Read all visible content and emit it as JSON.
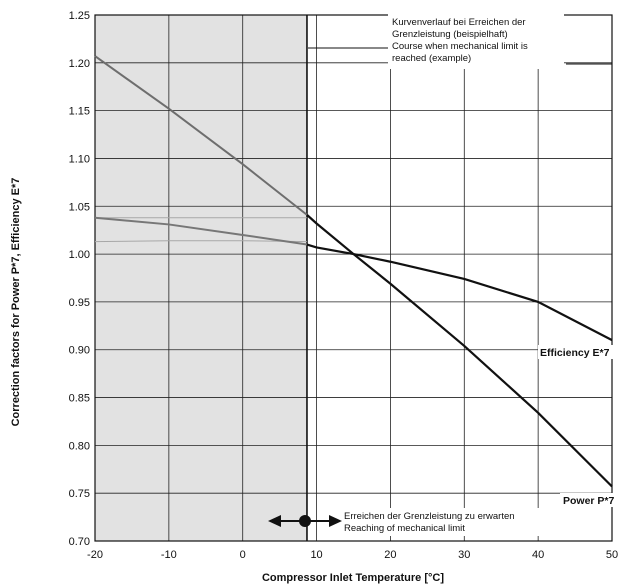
{
  "chart_data": {
    "type": "line",
    "title": "",
    "xlabel": "Compressor Inlet Temperature [°C]",
    "ylabel": "Correction factors for Power P*7, Efficiency E*7",
    "xlim": [
      -20,
      50
    ],
    "ylim": [
      0.7,
      1.25
    ],
    "x_ticks": [
      "-20",
      "-10",
      "0",
      "10",
      "20",
      "30",
      "40",
      "50"
    ],
    "y_ticks": [
      "0.70",
      "0.75",
      "0.80",
      "0.85",
      "0.90",
      "0.95",
      "1.00",
      "1.05",
      "1.10",
      "1.15",
      "1.20",
      "1.25"
    ],
    "grid": true,
    "shaded_region_x": [
      -20,
      8.7
    ],
    "mechanical_limit_x": 8.7,
    "series": [
      {
        "name": "Power P*7",
        "x": [
          -20,
          -10,
          0,
          8.7,
          10,
          15,
          20,
          30,
          40,
          50
        ],
        "y": [
          1.207,
          1.152,
          1.094,
          1.041,
          1.032,
          1.0,
          0.969,
          0.904,
          0.834,
          0.757
        ]
      },
      {
        "name": "Efficiency E*7",
        "x": [
          -20,
          -10,
          0,
          8.7,
          10,
          15,
          20,
          30,
          40,
          50
        ],
        "y": [
          1.038,
          1.031,
          1.02,
          1.01,
          1.007,
          1.0,
          0.992,
          0.974,
          0.95,
          0.91
        ]
      }
    ],
    "limit_curves": [
      {
        "x": [
          -20,
          -10,
          0,
          8.7
        ],
        "y": [
          1.038,
          1.038,
          1.038,
          1.038
        ]
      },
      {
        "x": [
          -20,
          -10,
          0,
          8.7
        ],
        "y": [
          1.013,
          1.014,
          1.014,
          1.013
        ]
      }
    ],
    "annotations": {
      "limit_course": [
        "Kurvenverlauf bei Erreichen der",
        "Grenzleistung (beispielhaft)",
        "Course when mechanical limit is",
        "reached (example)"
      ],
      "limit_reached": [
        "Erreichen der Grenzleistung zu erwarten",
        "Reaching of mechanical limit"
      ]
    },
    "series_labels": {
      "power": "Power P*7",
      "efficiency": "Efficiency E*7"
    },
    "colors": {
      "shade": "#e2e2e2",
      "grid": "#222222",
      "power_shaded": "#6e6e6e",
      "curve": "#111111",
      "limit_curve": "#a8a8a8"
    }
  }
}
